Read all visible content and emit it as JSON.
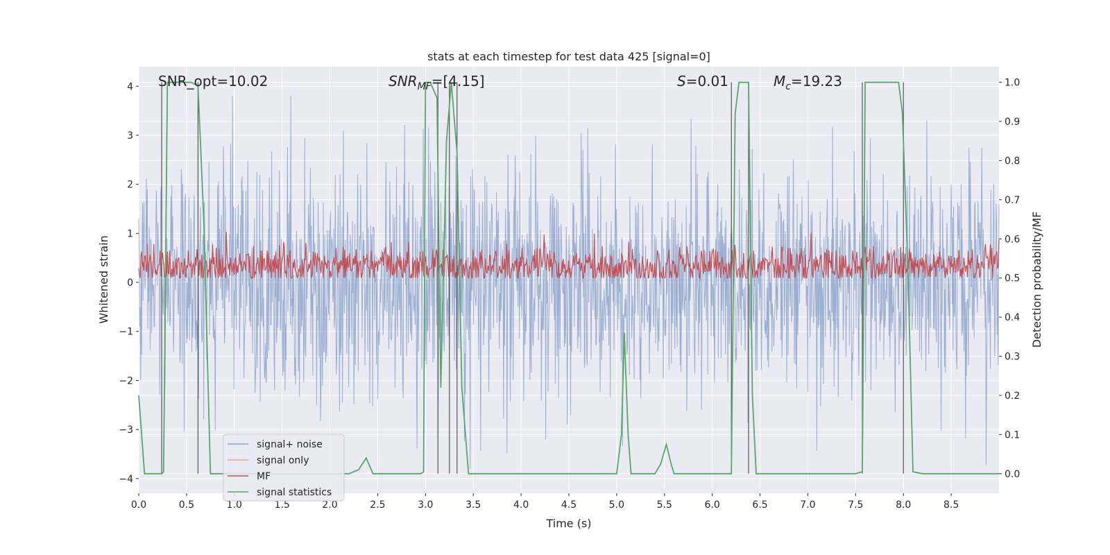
{
  "chart_data": {
    "type": "line",
    "title": "stats at each timestep for test data 425 [signal=0]",
    "xlabel": "Time (s)",
    "ylabel_left": "Whitened strain",
    "ylabel_right": "Detection probability/MF",
    "xlim": [
      0.0,
      9.0
    ],
    "ylim_left": [
      -4.3,
      4.4
    ],
    "ylim_right": [
      -0.05,
      1.04
    ],
    "x_ticks": [
      "0.0",
      "0.5",
      "1.0",
      "1.5",
      "2.0",
      "2.5",
      "3.0",
      "3.5",
      "4.0",
      "4.5",
      "5.0",
      "5.5",
      "6.0",
      "6.5",
      "7.0",
      "7.5",
      "8.0",
      "8.5"
    ],
    "x_tick_values": [
      0.0,
      0.5,
      1.0,
      1.5,
      2.0,
      2.5,
      3.0,
      3.5,
      4.0,
      4.5,
      5.0,
      5.5,
      6.0,
      6.5,
      7.0,
      7.5,
      8.0,
      8.5
    ],
    "y_left_ticks": [
      "4",
      "3",
      "2",
      "1",
      "0",
      "−1",
      "−2",
      "−3",
      "−4"
    ],
    "y_left_tick_values": [
      4,
      3,
      2,
      1,
      0,
      -1,
      -2,
      -3,
      -4
    ],
    "y_right_ticks": [
      "1.0",
      "0.9",
      "0.8",
      "0.7",
      "0.6",
      "0.5",
      "0.4",
      "0.3",
      "0.2",
      "0.1",
      "0.0"
    ],
    "y_right_tick_values": [
      1.0,
      0.9,
      0.8,
      0.7,
      0.6,
      0.5,
      0.4,
      0.3,
      0.2,
      0.1,
      0.0
    ],
    "annotations": {
      "snr_opt": "SNR_opt=10.02",
      "snr_mf_label": "SNR",
      "snr_mf_sub": "MF",
      "snr_mf_value": "=[4.15]",
      "s_label": "S",
      "s_value": "=0.01",
      "mc_label": "M",
      "mc_sub": "c",
      "mc_value": "=19.23"
    },
    "legend": [
      {
        "name": "signal+ noise",
        "color": "#4c72b0"
      },
      {
        "name": "signal only",
        "color": "#dd8452"
      },
      {
        "name": "MF",
        "color": "#c44e52"
      },
      {
        "name": "signal statistics",
        "color": "#55a868"
      }
    ],
    "series_noise": {
      "name": "signal+ noise",
      "color": "#4c72b0",
      "amplitude_typical": 1.6,
      "amplitude_peak": 3.8,
      "x_range": [
        0.0,
        9.0
      ]
    },
    "series_mf": {
      "name": "MF",
      "color": "#c44e52",
      "x_range": [
        0.0,
        9.0
      ],
      "mean": 0.53,
      "min": 0.5,
      "max": 0.62
    },
    "series_stats": {
      "name": "signal statistics",
      "color": "#55a868",
      "x": [
        0.0,
        0.06,
        0.24,
        0.26,
        0.3,
        0.55,
        0.62,
        0.68,
        0.75,
        1.0,
        2.0,
        2.2,
        2.3,
        2.38,
        2.45,
        2.95,
        2.98,
        3.0,
        3.05,
        3.12,
        3.16,
        3.22,
        3.27,
        3.33,
        3.38,
        3.45,
        3.6,
        5.0,
        5.05,
        5.08,
        5.12,
        5.15,
        5.4,
        5.46,
        5.52,
        5.57,
        5.6,
        6.0,
        6.2,
        6.24,
        6.28,
        6.33,
        6.38,
        6.42,
        6.46,
        6.5,
        7.5,
        7.57,
        7.6,
        7.68,
        7.95,
        7.99,
        8.05,
        8.1,
        8.2,
        8.3,
        9.0
      ],
      "y": [
        0.2,
        0.0,
        0.0,
        0.005,
        1.0,
        1.0,
        0.99,
        0.65,
        0.0,
        0.0,
        0.0,
        0.0,
        0.01,
        0.04,
        0.0,
        0.0,
        0.005,
        1.0,
        1.0,
        0.96,
        0.22,
        0.85,
        1.0,
        0.82,
        0.22,
        0.0,
        0.0,
        0.0,
        0.1,
        0.36,
        0.1,
        0.0,
        0.0,
        0.025,
        0.075,
        0.025,
        0.0,
        0.0,
        0.0,
        0.92,
        1.0,
        1.0,
        1.0,
        0.2,
        0.0,
        0.0,
        0.0,
        0.005,
        1.0,
        1.0,
        1.0,
        0.92,
        0.5,
        0.005,
        0.0,
        0.0,
        0.0
      ]
    },
    "vertical_lines_x": [
      0.24,
      0.62,
      3.13,
      3.25,
      3.33,
      6.2,
      6.38,
      7.57,
      8.0
    ],
    "legend_location": "lower-left",
    "grid": true
  }
}
